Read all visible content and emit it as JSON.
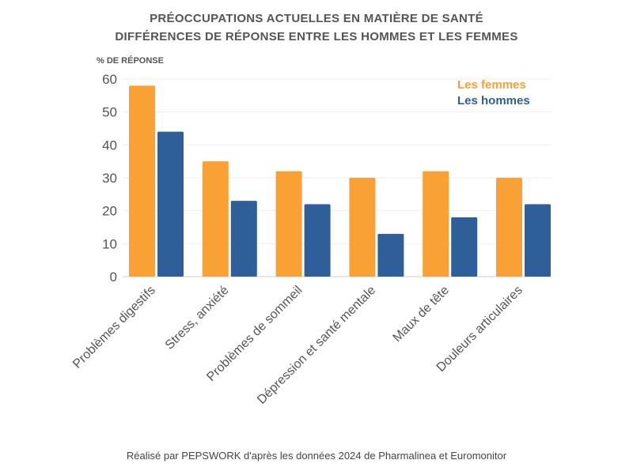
{
  "chart_data": {
    "type": "bar",
    "title": "PRÉOCCUPATIONS ACTUELLES EN MATIÈRE DE SANTÉ",
    "subtitle": "DIFFÉRENCES DE RÉPONSE ENTRE LES HOMMES ET LES FEMMES",
    "ylabel": "% DE RÉPONSE",
    "xlabel": "",
    "ylim": [
      0,
      60
    ],
    "yticks": [
      0,
      10,
      20,
      30,
      40,
      50,
      60
    ],
    "grid": true,
    "legend_position": "top-right",
    "categories": [
      "Problèmes digestifs",
      "Stress, anxiété",
      "Problèmes de sommeil",
      "Dépression et santé mentale",
      "Maux de tête",
      "Douleurs articulaires"
    ],
    "series": [
      {
        "name": "Les femmes",
        "color": "#F9A134",
        "values": [
          58,
          35,
          32,
          30,
          32,
          30
        ]
      },
      {
        "name": "Les hommes",
        "color": "#2E5F99",
        "values": [
          44,
          23,
          22,
          13,
          18,
          22
        ]
      }
    ],
    "footer": "Réalisé par PEPSWORK d'après les données 2024 de Pharmalinea et Euromonitor"
  }
}
